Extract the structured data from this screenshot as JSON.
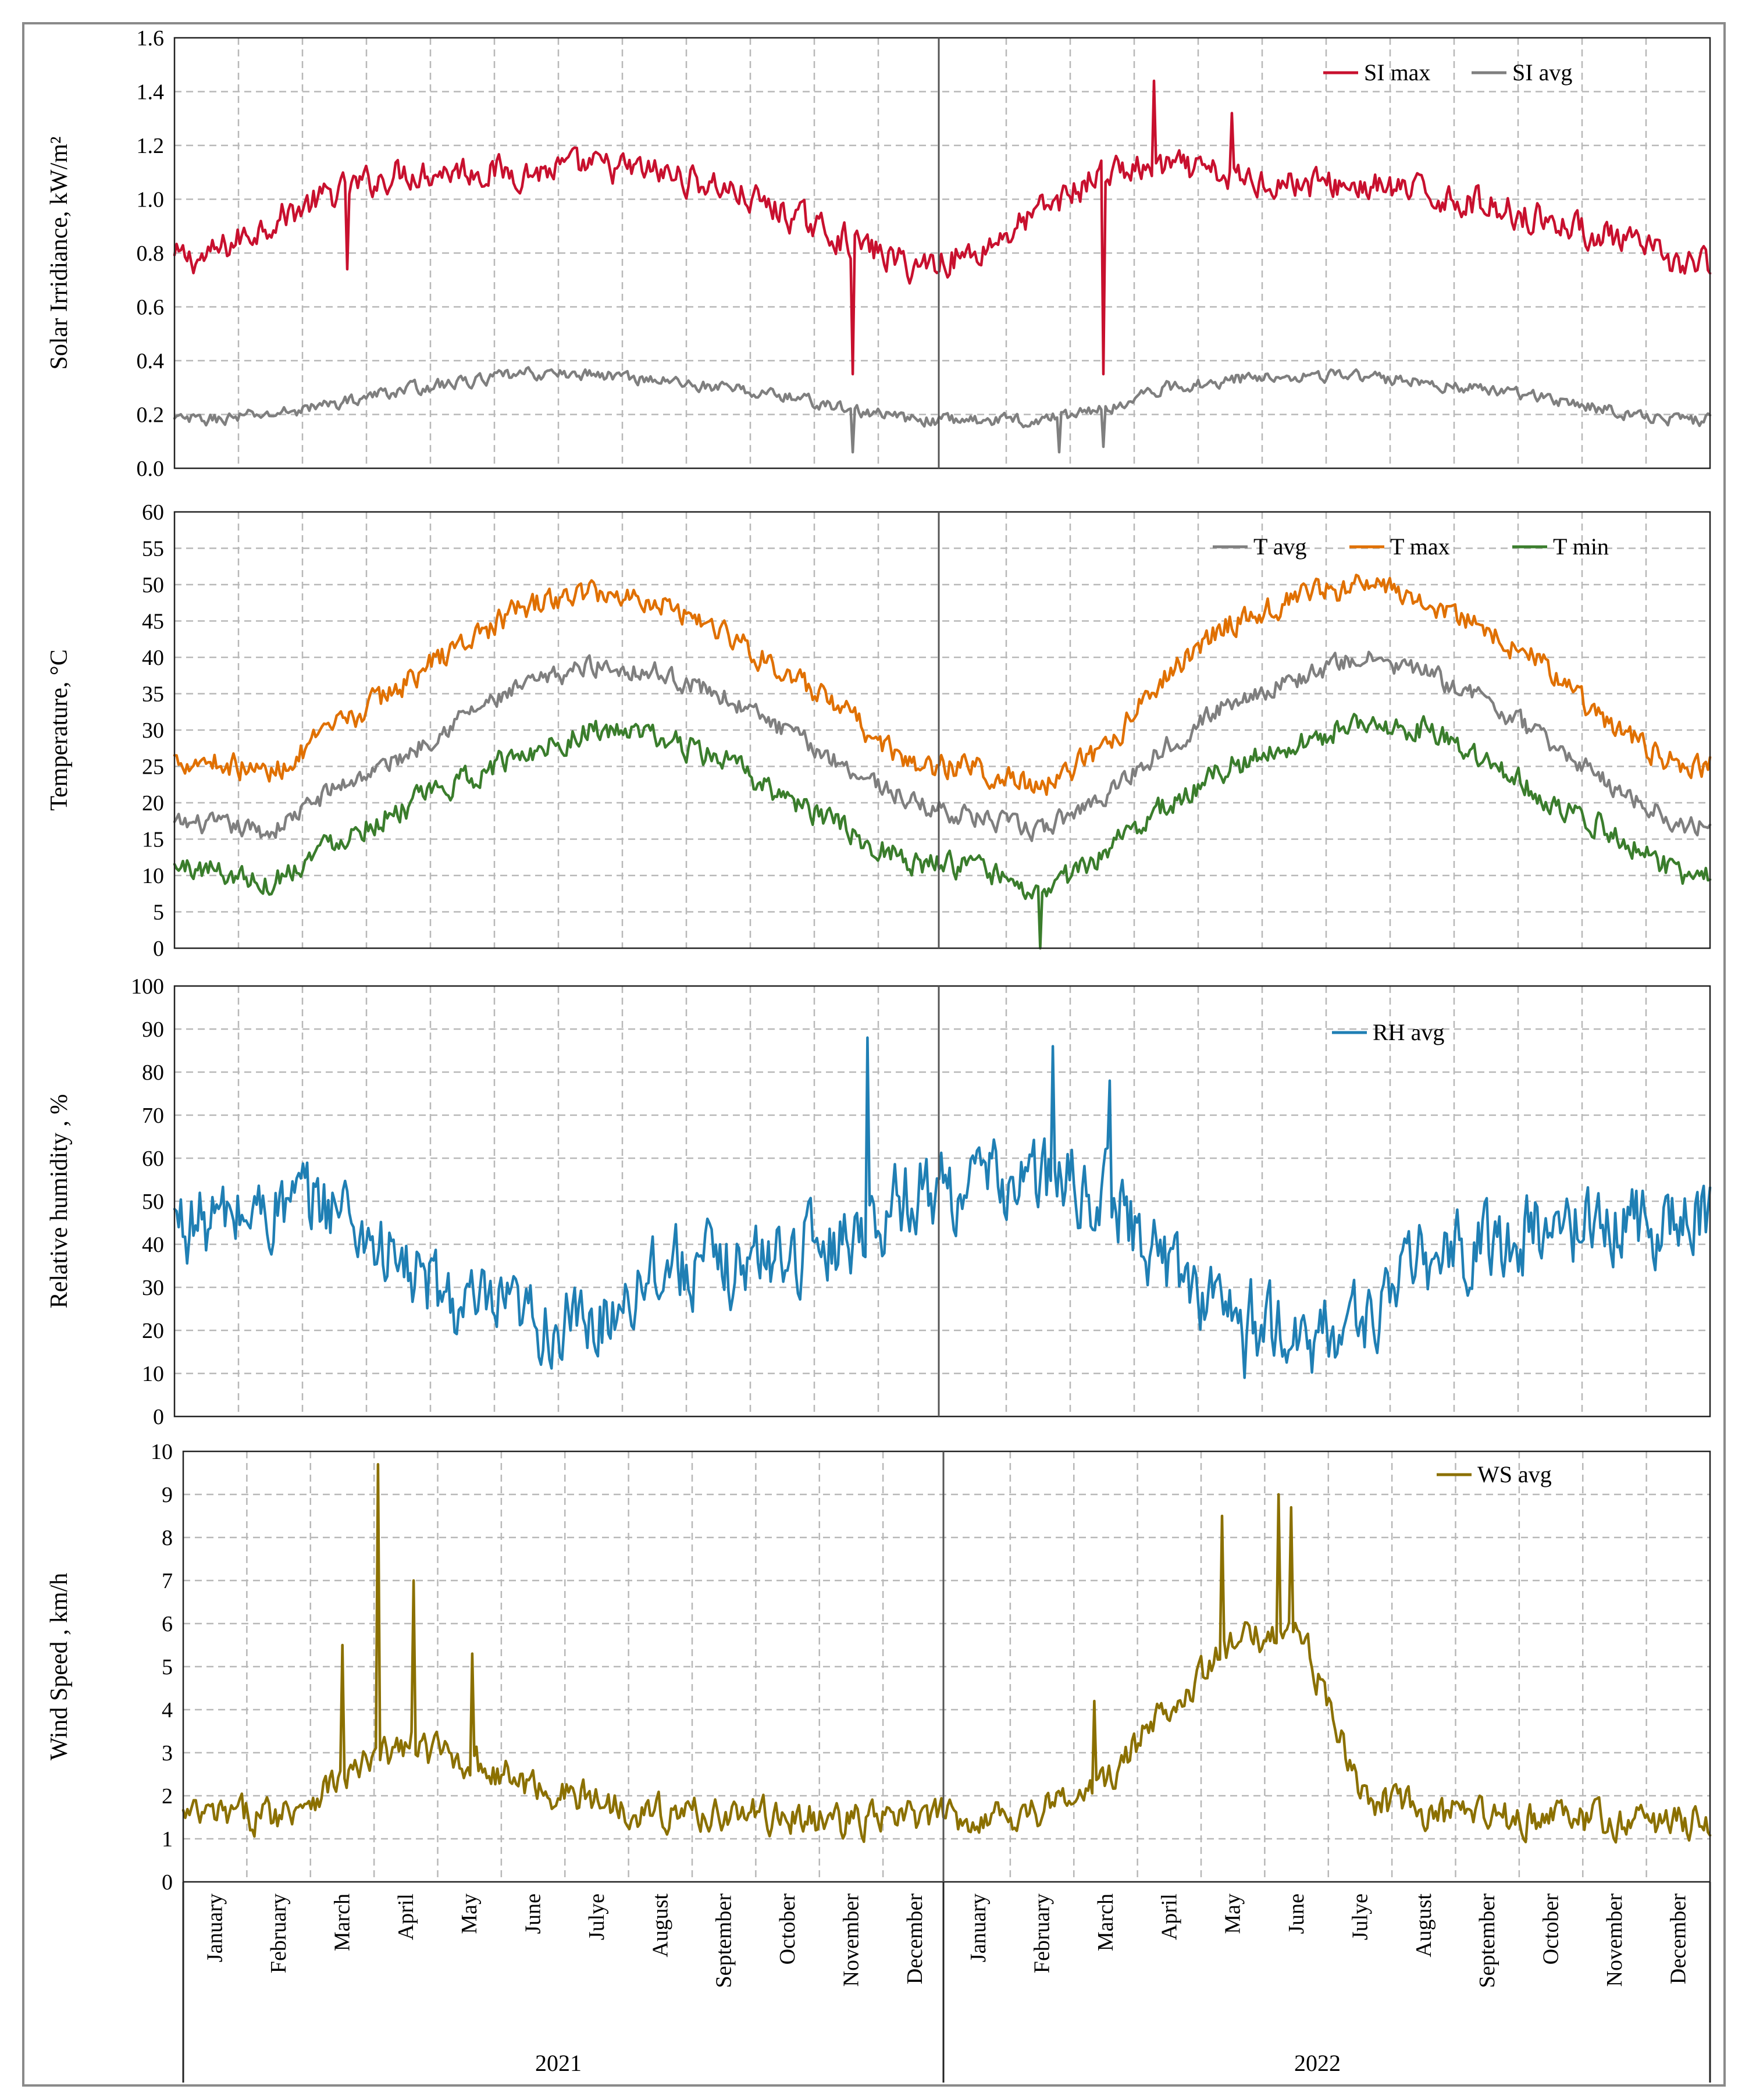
{
  "colors": {
    "si_max": "#c8102e",
    "si_avg": "#7f7f7f",
    "t_avg": "#7f7f7f",
    "t_max": "#e07000",
    "t_min": "#3a7d2c",
    "rh_avg": "#1f7fb4",
    "ws_avg": "#8b7000"
  },
  "chart_data": [
    {
      "type": "line",
      "id": "solar",
      "ylabel": "Solar Irridiance, kW/m²",
      "ylim": [
        0.0,
        1.6
      ],
      "yticks": [
        "0.0",
        "0.2",
        "0.4",
        "0.6",
        "0.8",
        "1.0",
        "1.2",
        "1.4",
        "1.6"
      ],
      "legend_position": "top-right",
      "grid": true,
      "x_months": [
        "Jan 2021",
        "Feb",
        "Mar",
        "Apr",
        "May",
        "Jun",
        "Jul",
        "Aug",
        "Sep",
        "Oct",
        "Nov",
        "Dec",
        "Jan 2022",
        "Feb",
        "Mar",
        "Apr",
        "May",
        "Jun",
        "Jul",
        "Aug",
        "Sep",
        "Oct",
        "Nov",
        "Dec"
      ],
      "series": [
        {
          "name": "SI max",
          "color_key": "si_max",
          "values": [
            0.78,
            0.92,
            1.02,
            1.1,
            1.11,
            1.1,
            1.12,
            1.1,
            1.05,
            0.95,
            0.85,
            0.75,
            0.8,
            0.95,
            1.1,
            1.12,
            1.08,
            1.06,
            1.05,
            1.02,
            0.98,
            0.92,
            0.85,
            0.76
          ],
          "noise": 0.05,
          "spikes": [
            {
              "month": 2.7,
              "value": 0.74
            },
            {
              "month": 10.6,
              "value": 0.35
            },
            {
              "month": 14.5,
              "value": 0.35
            },
            {
              "month": 15.3,
              "value": 1.44
            },
            {
              "month": 16.5,
              "value": 1.32
            }
          ]
        },
        {
          "name": "SI avg",
          "color_key": "si_avg",
          "values": [
            0.18,
            0.2,
            0.24,
            0.29,
            0.32,
            0.35,
            0.35,
            0.33,
            0.3,
            0.27,
            0.22,
            0.18,
            0.18,
            0.18,
            0.22,
            0.3,
            0.33,
            0.35,
            0.34,
            0.32,
            0.29,
            0.26,
            0.21,
            0.18
          ],
          "noise": 0.02,
          "spikes": [
            {
              "month": 10.6,
              "value": 0.06
            },
            {
              "month": 13.8,
              "value": 0.06
            },
            {
              "month": 14.5,
              "value": 0.08
            }
          ]
        }
      ]
    },
    {
      "type": "line",
      "id": "temperature",
      "ylabel": "Temperature, °C",
      "ylim": [
        0,
        60
      ],
      "yticks": [
        "0",
        "5",
        "10",
        "15",
        "20",
        "25",
        "30",
        "35",
        "40",
        "45",
        "50",
        "55",
        "60"
      ],
      "legend_position": "top-right",
      "grid": true,
      "series": [
        {
          "name": "T avg",
          "color_key": "t_avg",
          "values": [
            17,
            16,
            22,
            26,
            32,
            36,
            39,
            38,
            35,
            30,
            25,
            20,
            18,
            16,
            21,
            28,
            34,
            37,
            40,
            38,
            34,
            28,
            22,
            17
          ],
          "noise": 1.2
        },
        {
          "name": "T max",
          "color_key": "t_max",
          "values": [
            26,
            24,
            30,
            36,
            42,
            47,
            49,
            48,
            44,
            38,
            32,
            25,
            25,
            22,
            27,
            38,
            45,
            48,
            50,
            48,
            44,
            38,
            30,
            25
          ],
          "noise": 1.5
        },
        {
          "name": "T min",
          "color_key": "t_min",
          "values": [
            11,
            9,
            15,
            19,
            23,
            27,
            30,
            29,
            26,
            21,
            16,
            12,
            11,
            7,
            13,
            20,
            25,
            28,
            31,
            30,
            26,
            20,
            16,
            10
          ],
          "noise": 1.5,
          "spikes": [
            {
              "month": 13.5,
              "value": 0
            }
          ]
        }
      ]
    },
    {
      "type": "line",
      "id": "humidity",
      "ylabel": "Relative humidity , %",
      "ylim": [
        0,
        100
      ],
      "yticks": [
        "0",
        "10",
        "20",
        "30",
        "40",
        "50",
        "60",
        "70",
        "80",
        "90",
        "100"
      ],
      "legend_position": "top-right",
      "grid": true,
      "series": [
        {
          "name": "RH avg",
          "color_key": "rh_avg",
          "values": [
            45,
            48,
            50,
            35,
            25,
            22,
            20,
            36,
            34,
            38,
            42,
            52,
            54,
            55,
            52,
            35,
            25,
            17,
            22,
            36,
            40,
            44,
            45,
            46
          ],
          "noise": 8,
          "spikes": [
            {
              "month": 10.8,
              "value": 88
            },
            {
              "month": 13.7,
              "value": 86
            },
            {
              "month": 14.6,
              "value": 78
            },
            {
              "month": 16.7,
              "value": 9
            }
          ]
        }
      ]
    },
    {
      "type": "line",
      "id": "wind",
      "ylabel": "Wind Speed , km/h",
      "ylim": [
        0,
        10
      ],
      "yticks": [
        "0",
        "1",
        "2",
        "3",
        "4",
        "5",
        "6",
        "7",
        "8",
        "9",
        "10"
      ],
      "legend_position": "top-right",
      "grid": true,
      "series": [
        {
          "name": "WS avg",
          "color_key": "ws_avg",
          "values": [
            1.5,
            1.6,
            2.4,
            3.2,
            2.8,
            2.2,
            1.9,
            1.6,
            1.6,
            1.5,
            1.4,
            1.5,
            1.5,
            1.7,
            2.3,
            4.2,
            5.5,
            6.0,
            2.0,
            1.6,
            1.5,
            1.5,
            1.4,
            1.4
          ],
          "noise": 0.35,
          "spikes": [
            {
              "month": 3.05,
              "value": 9.7
            },
            {
              "month": 3.6,
              "value": 7.0
            },
            {
              "month": 2.5,
              "value": 5.5
            },
            {
              "month": 4.55,
              "value": 5.3
            },
            {
              "month": 17.2,
              "value": 9.0
            },
            {
              "month": 16.3,
              "value": 8.5
            },
            {
              "month": 17.4,
              "value": 8.7
            },
            {
              "month": 17.9,
              "value": 4.7
            },
            {
              "month": 14.3,
              "value": 4.2
            }
          ]
        }
      ]
    }
  ],
  "x_axis": {
    "month_labels": [
      "January",
      "February",
      "March",
      "April",
      "May",
      "June",
      "Julye",
      "August",
      "September",
      "October",
      "November",
      "December",
      "January",
      "February",
      "March",
      "April",
      "May",
      "June",
      "Julye",
      "August",
      "September",
      "October",
      "November",
      "December"
    ],
    "years": [
      "2021",
      "2022"
    ]
  }
}
